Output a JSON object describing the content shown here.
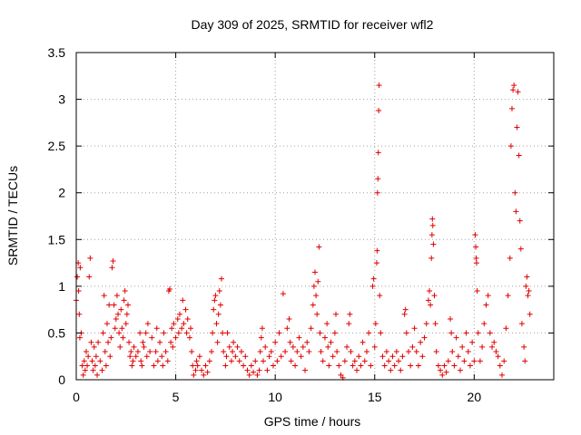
{
  "chart_data": {
    "type": "scatter",
    "title": "Day 309 of 2025, SRMTID for receiver wfl2",
    "xlabel": "GPS time / hours",
    "ylabel": "SRMTID / TECUs",
    "xlim": [
      0,
      24
    ],
    "ylim": [
      0,
      3.5
    ],
    "xticks": [
      0,
      5,
      10,
      15,
      20
    ],
    "xtick_labels": [
      "0",
      "5",
      "10",
      "15",
      "20"
    ],
    "yticks": [
      0,
      0.5,
      1,
      1.5,
      2,
      2.5,
      3,
      3.5
    ],
    "ytick_labels": [
      "0",
      "0.5",
      "1",
      "1.5",
      "2",
      "2.5",
      "3",
      "3.5"
    ],
    "grid": true,
    "marker": "+",
    "color": "#e00000",
    "series": [
      {
        "name": "SRMTID",
        "points": [
          [
            0.0,
            0.85
          ],
          [
            0.05,
            1.1
          ],
          [
            0.1,
            1.25
          ],
          [
            0.12,
            0.95
          ],
          [
            0.15,
            0.7
          ],
          [
            0.18,
            0.45
          ],
          [
            0.2,
            1.2
          ],
          [
            0.25,
            0.5
          ],
          [
            0.3,
            0.15
          ],
          [
            0.35,
            0.05
          ],
          [
            0.4,
            0.2
          ],
          [
            0.45,
            0.1
          ],
          [
            0.5,
            0.3
          ],
          [
            0.55,
            0.15
          ],
          [
            0.6,
            0.25
          ],
          [
            0.65,
            1.1
          ],
          [
            0.7,
            1.3
          ],
          [
            0.75,
            0.4
          ],
          [
            0.8,
            0.2
          ],
          [
            0.85,
            0.1
          ],
          [
            0.9,
            0.35
          ],
          [
            0.95,
            0.15
          ],
          [
            1.0,
            0.25
          ],
          [
            1.05,
            0.05
          ],
          [
            1.1,
            0.4
          ],
          [
            1.2,
            0.2
          ],
          [
            1.3,
            0.1
          ],
          [
            1.35,
            0.5
          ],
          [
            1.4,
            0.9
          ],
          [
            1.45,
            0.3
          ],
          [
            1.5,
            0.15
          ],
          [
            1.55,
            0.6
          ],
          [
            1.6,
            0.4
          ],
          [
            1.65,
            0.8
          ],
          [
            1.7,
            0.25
          ],
          [
            1.75,
            0.45
          ],
          [
            1.8,
            1.2
          ],
          [
            1.85,
            1.27
          ],
          [
            1.9,
            0.8
          ],
          [
            1.95,
            0.55
          ],
          [
            2.0,
            0.65
          ],
          [
            2.05,
            0.9
          ],
          [
            2.1,
            0.7
          ],
          [
            2.15,
            0.5
          ],
          [
            2.2,
            0.35
          ],
          [
            2.25,
            0.75
          ],
          [
            2.3,
            0.55
          ],
          [
            2.35,
            0.45
          ],
          [
            2.4,
            0.85
          ],
          [
            2.45,
            0.95
          ],
          [
            2.5,
            0.6
          ],
          [
            2.55,
            0.7
          ],
          [
            2.6,
            0.8
          ],
          [
            2.65,
            0.4
          ],
          [
            2.7,
            0.25
          ],
          [
            2.75,
            0.3
          ],
          [
            2.8,
            0.15
          ],
          [
            2.85,
            0.2
          ],
          [
            2.9,
            0.35
          ],
          [
            3.0,
            0.25
          ],
          [
            3.1,
            0.3
          ],
          [
            3.2,
            0.5
          ],
          [
            3.25,
            0.2
          ],
          [
            3.3,
            0.15
          ],
          [
            3.35,
            0.4
          ],
          [
            3.4,
            0.35
          ],
          [
            3.5,
            0.5
          ],
          [
            3.55,
            0.25
          ],
          [
            3.6,
            0.6
          ],
          [
            3.7,
            0.3
          ],
          [
            3.8,
            0.45
          ],
          [
            3.9,
            0.15
          ],
          [
            4.0,
            0.3
          ],
          [
            4.05,
            0.55
          ],
          [
            4.1,
            0.2
          ],
          [
            4.2,
            0.4
          ],
          [
            4.3,
            0.25
          ],
          [
            4.35,
            0.15
          ],
          [
            4.4,
            0.5
          ],
          [
            4.5,
            0.3
          ],
          [
            4.6,
            0.2
          ],
          [
            4.65,
            0.95
          ],
          [
            4.7,
            0.97
          ],
          [
            4.75,
            0.4
          ],
          [
            4.8,
            0.55
          ],
          [
            4.85,
            0.35
          ],
          [
            4.9,
            0.6
          ],
          [
            5.0,
            0.45
          ],
          [
            5.1,
            0.65
          ],
          [
            5.15,
            0.5
          ],
          [
            5.2,
            0.7
          ],
          [
            5.3,
            0.55
          ],
          [
            5.35,
            0.85
          ],
          [
            5.4,
            0.6
          ],
          [
            5.5,
            0.75
          ],
          [
            5.55,
            0.5
          ],
          [
            5.6,
            0.65
          ],
          [
            5.7,
            0.45
          ],
          [
            5.75,
            0.55
          ],
          [
            5.8,
            0.3
          ],
          [
            5.85,
            0.15
          ],
          [
            5.9,
            0.05
          ],
          [
            6.0,
            0.1
          ],
          [
            6.05,
            0.2
          ],
          [
            6.1,
            0.15
          ],
          [
            6.2,
            0.25
          ],
          [
            6.3,
            0.1
          ],
          [
            6.4,
            0.05
          ],
          [
            6.5,
            0.15
          ],
          [
            6.6,
            0.08
          ],
          [
            6.7,
            0.2
          ],
          [
            6.8,
            0.3
          ],
          [
            6.85,
            0.5
          ],
          [
            6.9,
            0.75
          ],
          [
            6.95,
            0.85
          ],
          [
            7.0,
            0.9
          ],
          [
            7.05,
            0.6
          ],
          [
            7.1,
            0.4
          ],
          [
            7.15,
            0.7
          ],
          [
            7.2,
            0.95
          ],
          [
            7.25,
            0.8
          ],
          [
            7.3,
            1.08
          ],
          [
            7.35,
            0.5
          ],
          [
            7.4,
            0.3
          ],
          [
            7.5,
            0.15
          ],
          [
            7.55,
            0.25
          ],
          [
            7.6,
            0.5
          ],
          [
            7.7,
            0.35
          ],
          [
            7.8,
            0.2
          ],
          [
            7.85,
            0.3
          ],
          [
            7.9,
            0.4
          ],
          [
            8.0,
            0.25
          ],
          [
            8.1,
            0.35
          ],
          [
            8.2,
            0.2
          ],
          [
            8.3,
            0.3
          ],
          [
            8.4,
            0.15
          ],
          [
            8.5,
            0.25
          ],
          [
            8.6,
            0.1
          ],
          [
            8.7,
            0.05
          ],
          [
            8.8,
            0.15
          ],
          [
            8.9,
            0.08
          ],
          [
            9.0,
            0.2
          ],
          [
            9.1,
            0.05
          ],
          [
            9.2,
            0.1
          ],
          [
            9.25,
            0.3
          ],
          [
            9.3,
            0.45
          ],
          [
            9.35,
            0.55
          ],
          [
            9.4,
            0.2
          ],
          [
            9.5,
            0.35
          ],
          [
            9.6,
            0.1
          ],
          [
            9.7,
            0.25
          ],
          [
            9.8,
            0.3
          ],
          [
            9.9,
            0.15
          ],
          [
            10.0,
            0.4
          ],
          [
            10.1,
            0.2
          ],
          [
            10.2,
            0.5
          ],
          [
            10.3,
            0.25
          ],
          [
            10.4,
            0.92
          ],
          [
            10.5,
            0.3
          ],
          [
            10.6,
            0.55
          ],
          [
            10.7,
            0.65
          ],
          [
            10.75,
            0.4
          ],
          [
            10.8,
            0.2
          ],
          [
            10.9,
            0.35
          ],
          [
            11.0,
            0.15
          ],
          [
            11.1,
            0.3
          ],
          [
            11.2,
            0.45
          ],
          [
            11.3,
            0.25
          ],
          [
            11.4,
            0.35
          ],
          [
            11.5,
            0.1
          ],
          [
            11.6,
            0.4
          ],
          [
            11.7,
            0.3
          ],
          [
            11.8,
            0.55
          ],
          [
            11.9,
            0.8
          ],
          [
            11.95,
            1.0
          ],
          [
            12.0,
            1.15
          ],
          [
            12.05,
            0.9
          ],
          [
            12.1,
            0.7
          ],
          [
            12.15,
            1.05
          ],
          [
            12.2,
            1.42
          ],
          [
            12.25,
            0.5
          ],
          [
            12.3,
            0.3
          ],
          [
            12.4,
            0.2
          ],
          [
            12.5,
            0.45
          ],
          [
            12.6,
            0.6
          ],
          [
            12.65,
            0.35
          ],
          [
            12.7,
            0.15
          ],
          [
            12.8,
            0.4
          ],
          [
            12.9,
            0.25
          ],
          [
            13.0,
            0.5
          ],
          [
            13.05,
            0.7
          ],
          [
            13.1,
            0.3
          ],
          [
            13.2,
            0.15
          ],
          [
            13.3,
            0.05
          ],
          [
            13.4,
            0.02
          ],
          [
            13.5,
            0.2
          ],
          [
            13.6,
            0.35
          ],
          [
            13.7,
            0.6
          ],
          [
            13.75,
            0.7
          ],
          [
            13.8,
            0.3
          ],
          [
            13.9,
            0.15
          ],
          [
            14.0,
            0.2
          ],
          [
            14.1,
            0.1
          ],
          [
            14.2,
            0.25
          ],
          [
            14.3,
            0.15
          ],
          [
            14.4,
            0.4
          ],
          [
            14.5,
            0.2
          ],
          [
            14.6,
            0.3
          ],
          [
            14.7,
            0.5
          ],
          [
            14.8,
            0.15
          ],
          [
            14.9,
            1.0
          ],
          [
            14.95,
            1.08
          ],
          [
            15.0,
            0.35
          ],
          [
            15.05,
            0.6
          ],
          [
            15.1,
            1.25
          ],
          [
            15.12,
            1.38
          ],
          [
            15.14,
            2.0
          ],
          [
            15.16,
            2.15
          ],
          [
            15.18,
            2.43
          ],
          [
            15.2,
            2.88
          ],
          [
            15.22,
            3.15
          ],
          [
            15.25,
            0.9
          ],
          [
            15.3,
            0.5
          ],
          [
            15.4,
            0.25
          ],
          [
            15.5,
            0.15
          ],
          [
            15.6,
            0.3
          ],
          [
            15.7,
            0.2
          ],
          [
            15.8,
            0.1
          ],
          [
            15.9,
            0.25
          ],
          [
            16.0,
            0.15
          ],
          [
            16.1,
            0.3
          ],
          [
            16.2,
            0.2
          ],
          [
            16.3,
            0.1
          ],
          [
            16.4,
            0.25
          ],
          [
            16.5,
            0.7
          ],
          [
            16.55,
            0.75
          ],
          [
            16.6,
            0.5
          ],
          [
            16.7,
            0.3
          ],
          [
            16.8,
            0.15
          ],
          [
            16.9,
            0.35
          ],
          [
            17.0,
            0.55
          ],
          [
            17.1,
            0.3
          ],
          [
            17.2,
            0.15
          ],
          [
            17.3,
            0.4
          ],
          [
            17.4,
            0.25
          ],
          [
            17.5,
            0.45
          ],
          [
            17.6,
            0.6
          ],
          [
            17.7,
            0.85
          ],
          [
            17.75,
            0.95
          ],
          [
            17.8,
            0.8
          ],
          [
            17.85,
            1.3
          ],
          [
            17.88,
            1.55
          ],
          [
            17.9,
            1.72
          ],
          [
            17.92,
            1.65
          ],
          [
            17.95,
            1.45
          ],
          [
            18.0,
            0.9
          ],
          [
            18.05,
            0.6
          ],
          [
            18.1,
            0.3
          ],
          [
            18.2,
            0.15
          ],
          [
            18.3,
            0.1
          ],
          [
            18.4,
            0.05
          ],
          [
            18.5,
            0.15
          ],
          [
            18.6,
            0.08
          ],
          [
            18.7,
            0.2
          ],
          [
            18.8,
            0.65
          ],
          [
            18.85,
            0.5
          ],
          [
            18.9,
            0.3
          ],
          [
            19.0,
            0.15
          ],
          [
            19.1,
            0.45
          ],
          [
            19.2,
            0.25
          ],
          [
            19.3,
            0.1
          ],
          [
            19.4,
            0.35
          ],
          [
            19.5,
            0.2
          ],
          [
            19.6,
            0.5
          ],
          [
            19.7,
            0.3
          ],
          [
            19.8,
            0.15
          ],
          [
            19.9,
            0.4
          ],
          [
            20.0,
            0.2
          ],
          [
            20.05,
            1.55
          ],
          [
            20.08,
            1.42
          ],
          [
            20.1,
            1.3
          ],
          [
            20.12,
            1.25
          ],
          [
            20.15,
            0.95
          ],
          [
            20.2,
            0.5
          ],
          [
            20.3,
            0.2
          ],
          [
            20.4,
            0.35
          ],
          [
            20.5,
            0.6
          ],
          [
            20.6,
            0.8
          ],
          [
            20.7,
            0.9
          ],
          [
            20.8,
            0.5
          ],
          [
            20.9,
            0.35
          ],
          [
            21.0,
            0.4
          ],
          [
            21.1,
            0.3
          ],
          [
            21.2,
            0.25
          ],
          [
            21.3,
            0.15
          ],
          [
            21.4,
            0.05
          ],
          [
            21.5,
            0.2
          ],
          [
            21.6,
            0.55
          ],
          [
            21.7,
            0.9
          ],
          [
            21.8,
            1.3
          ],
          [
            21.85,
            2.5
          ],
          [
            21.9,
            2.9
          ],
          [
            21.95,
            3.1
          ],
          [
            22.0,
            3.15
          ],
          [
            22.05,
            2.0
          ],
          [
            22.1,
            1.8
          ],
          [
            22.15,
            2.7
          ],
          [
            22.2,
            3.08
          ],
          [
            22.25,
            2.4
          ],
          [
            22.3,
            1.7
          ],
          [
            22.35,
            1.4
          ],
          [
            22.4,
            0.6
          ],
          [
            22.5,
            0.35
          ],
          [
            22.55,
            0.2
          ],
          [
            22.6,
            1.0
          ],
          [
            22.65,
            1.1
          ],
          [
            22.7,
            0.9
          ],
          [
            22.75,
            0.95
          ],
          [
            22.8,
            0.7
          ]
        ]
      }
    ]
  }
}
